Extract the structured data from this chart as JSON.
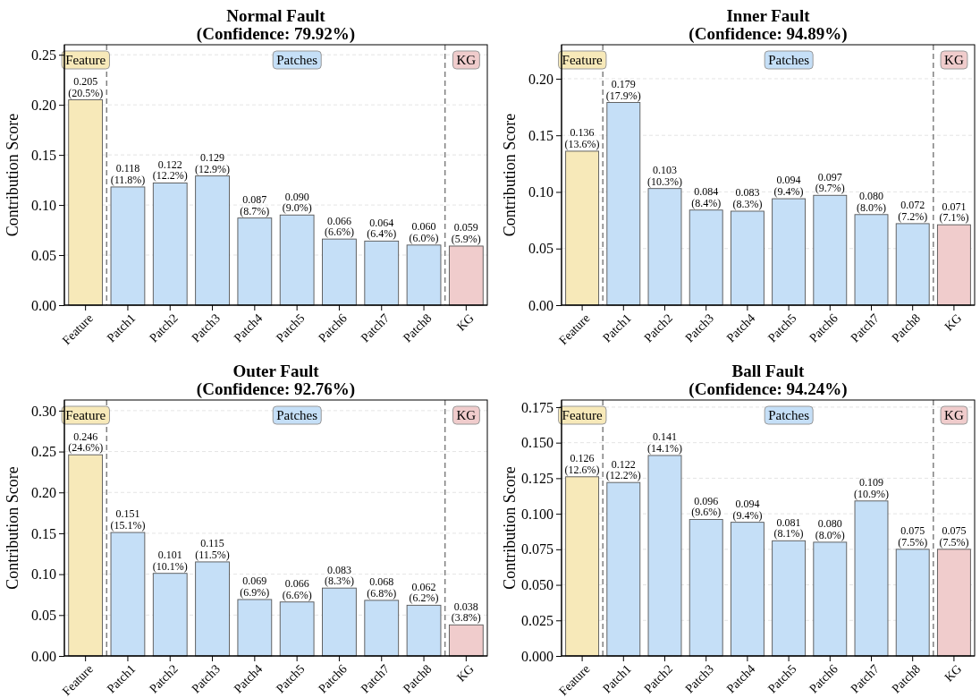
{
  "chart_data": [
    {
      "type": "bar",
      "title": "Normal Fault\n(Confidence: 79.92%)",
      "ylabel": "Contribution Score",
      "categories": [
        "Feature",
        "Patch1",
        "Patch2",
        "Patch3",
        "Patch4",
        "Patch5",
        "Patch6",
        "Patch7",
        "Patch8",
        "KG"
      ],
      "values": [
        0.205,
        0.118,
        0.122,
        0.129,
        0.087,
        0.09,
        0.066,
        0.064,
        0.06,
        0.059
      ],
      "value_labels": [
        "0.205\n(20.5%)",
        "0.118\n(11.8%)",
        "0.122\n(12.2%)",
        "0.129\n(12.9%)",
        "0.087\n(8.7%)",
        "0.090\n(9.0%)",
        "0.066\n(6.6%)",
        "0.064\n(6.4%)",
        "0.060\n(6.0%)",
        "0.059\n(5.9%)"
      ],
      "colors": [
        "#f7e9b9",
        "#c5dff7",
        "#c5dff7",
        "#c5dff7",
        "#c5dff7",
        "#c5dff7",
        "#c5dff7",
        "#c5dff7",
        "#c5dff7",
        "#f0cccc"
      ],
      "ylim": [
        0,
        0.26
      ],
      "yticks": [
        {
          "value": 0,
          "label": "0.00"
        },
        {
          "value": 0.05,
          "label": "0.05"
        },
        {
          "value": 0.1,
          "label": "0.10"
        },
        {
          "value": 0.15,
          "label": "0.15"
        },
        {
          "value": 0.2,
          "label": "0.20"
        },
        {
          "value": 0.25,
          "label": "0.25"
        }
      ],
      "grid": "y",
      "annotations": [
        "Feature",
        "Patches",
        "KG"
      ]
    },
    {
      "type": "bar",
      "title": "Inner Fault\n(Confidence: 94.89%)",
      "ylabel": "Contribution Score",
      "categories": [
        "Feature",
        "Patch1",
        "Patch2",
        "Patch3",
        "Patch4",
        "Patch5",
        "Patch6",
        "Patch7",
        "Patch8",
        "KG"
      ],
      "values": [
        0.136,
        0.179,
        0.103,
        0.084,
        0.083,
        0.094,
        0.097,
        0.08,
        0.072,
        0.071
      ],
      "value_labels": [
        "0.136\n(13.6%)",
        "0.179\n(17.9%)",
        "0.103\n(10.3%)",
        "0.084\n(8.4%)",
        "0.083\n(8.3%)",
        "0.094\n(9.4%)",
        "0.097\n(9.7%)",
        "0.080\n(8.0%)",
        "0.072\n(7.2%)",
        "0.071\n(7.1%)"
      ],
      "colors": [
        "#f7e9b9",
        "#c5dff7",
        "#c5dff7",
        "#c5dff7",
        "#c5dff7",
        "#c5dff7",
        "#c5dff7",
        "#c5dff7",
        "#c5dff7",
        "#f0cccc"
      ],
      "ylim": [
        0,
        0.23
      ],
      "yticks": [
        {
          "value": 0,
          "label": "0.00"
        },
        {
          "value": 0.05,
          "label": "0.05"
        },
        {
          "value": 0.1,
          "label": "0.10"
        },
        {
          "value": 0.15,
          "label": "0.15"
        },
        {
          "value": 0.2,
          "label": "0.20"
        }
      ],
      "grid": "y",
      "annotations": [
        "Feature",
        "Patches",
        "KG"
      ]
    },
    {
      "type": "bar",
      "title": "Outer Fault\n(Confidence: 92.76%)",
      "ylabel": "Contribution Score",
      "categories": [
        "Feature",
        "Patch1",
        "Patch2",
        "Patch3",
        "Patch4",
        "Patch5",
        "Patch6",
        "Patch7",
        "Patch8",
        "KG"
      ],
      "values": [
        0.246,
        0.151,
        0.101,
        0.115,
        0.069,
        0.066,
        0.083,
        0.068,
        0.062,
        0.038
      ],
      "value_labels": [
        "0.246\n(24.6%)",
        "0.151\n(15.1%)",
        "0.101\n(10.1%)",
        "0.115\n(11.5%)",
        "0.069\n(6.9%)",
        "0.066\n(6.6%)",
        "0.083\n(8.3%)",
        "0.068\n(6.8%)",
        "0.062\n(6.2%)",
        "0.038\n(3.8%)"
      ],
      "colors": [
        "#f7e9b9",
        "#c5dff7",
        "#c5dff7",
        "#c5dff7",
        "#c5dff7",
        "#c5dff7",
        "#c5dff7",
        "#c5dff7",
        "#c5dff7",
        "#f0cccc"
      ],
      "ylim": [
        0,
        0.313
      ],
      "yticks": [
        {
          "value": 0,
          "label": "0.00"
        },
        {
          "value": 0.05,
          "label": "0.05"
        },
        {
          "value": 0.1,
          "label": "0.10"
        },
        {
          "value": 0.15,
          "label": "0.15"
        },
        {
          "value": 0.2,
          "label": "0.20"
        },
        {
          "value": 0.25,
          "label": "0.25"
        },
        {
          "value": 0.3,
          "label": "0.30"
        }
      ],
      "grid": "y",
      "annotations": [
        "Feature",
        "Patches",
        "KG"
      ]
    },
    {
      "type": "bar",
      "title": "Ball Fault\n(Confidence: 94.24%)",
      "ylabel": "Contribution Score",
      "categories": [
        "Feature",
        "Patch1",
        "Patch2",
        "Patch3",
        "Patch4",
        "Patch5",
        "Patch6",
        "Patch7",
        "Patch8",
        "KG"
      ],
      "values": [
        0.126,
        0.122,
        0.141,
        0.096,
        0.094,
        0.081,
        0.08,
        0.109,
        0.075,
        0.075
      ],
      "value_labels": [
        "0.126\n(12.6%)",
        "0.122\n(12.2%)",
        "0.141\n(14.1%)",
        "0.096\n(9.6%)",
        "0.094\n(9.4%)",
        "0.081\n(8.1%)",
        "0.080\n(8.0%)",
        "0.109\n(10.9%)",
        "0.075\n(7.5%)",
        "0.075\n(7.5%)"
      ],
      "colors": [
        "#f7e9b9",
        "#c5dff7",
        "#c5dff7",
        "#c5dff7",
        "#c5dff7",
        "#c5dff7",
        "#c5dff7",
        "#c5dff7",
        "#c5dff7",
        "#f0cccc"
      ],
      "ylim": [
        0,
        0.18
      ],
      "yticks": [
        {
          "value": 0,
          "label": "0.000"
        },
        {
          "value": 0.025,
          "label": "0.025"
        },
        {
          "value": 0.05,
          "label": "0.050"
        },
        {
          "value": 0.075,
          "label": "0.075"
        },
        {
          "value": 0.1,
          "label": "0.100"
        },
        {
          "value": 0.125,
          "label": "0.125"
        },
        {
          "value": 0.15,
          "label": "0.150"
        },
        {
          "value": 0.175,
          "label": "0.175"
        }
      ],
      "grid": "y",
      "annotations": [
        "Feature",
        "Patches",
        "KG"
      ]
    }
  ]
}
